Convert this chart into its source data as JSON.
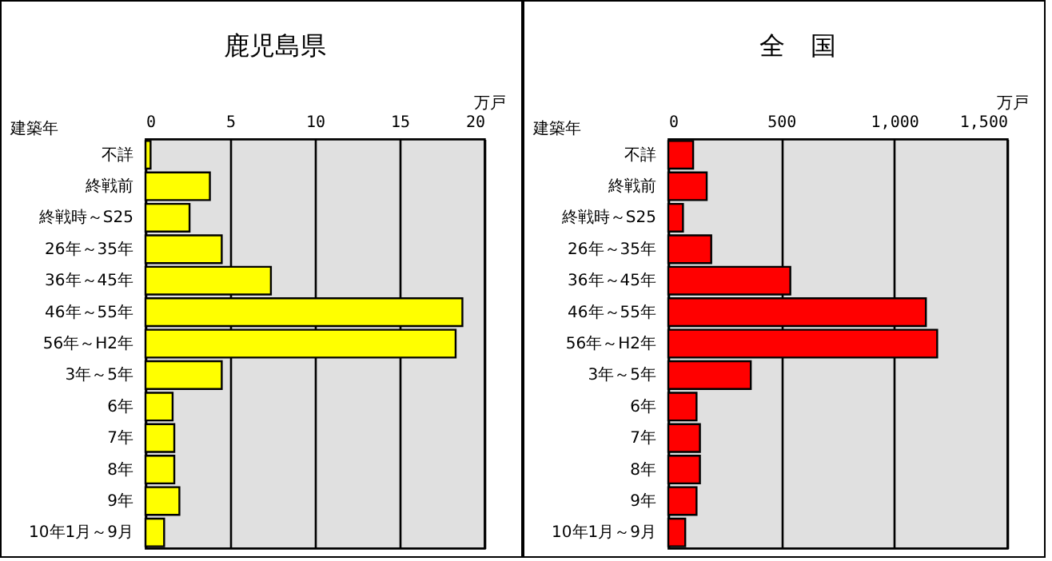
{
  "chart_data": [
    {
      "type": "bar",
      "orientation": "horizontal",
      "title": "鹿児島県",
      "xlabel": "万戸",
      "ylabel": "建築年",
      "categories": [
        "不詳",
        "終戦前",
        "終戦時～S25",
        "26年～35年",
        "36年～45年",
        "46年～55年",
        "56年～H2年",
        "3年～5年",
        "6年",
        "7年",
        "8年",
        "9年",
        "10年1月～9月"
      ],
      "values": [
        0.3,
        3.8,
        2.6,
        4.5,
        7.4,
        18.7,
        18.3,
        4.5,
        1.6,
        1.7,
        1.7,
        2.0,
        1.1
      ],
      "color": "#ffff00",
      "xlim": [
        0,
        20
      ],
      "xticks": [
        0,
        5,
        10,
        15,
        20
      ],
      "grid": "x"
    },
    {
      "type": "bar",
      "orientation": "horizontal",
      "title": "全　国",
      "xlabel": "万戸",
      "ylabel": "建築年",
      "categories": [
        "不詳",
        "終戦前",
        "終戦時～S25",
        "26年～35年",
        "36年～45年",
        "46年～55年",
        "56年～H2年",
        "3年～5年",
        "6年",
        "7年",
        "8年",
        "9年",
        "10年1月～9月"
      ],
      "values": [
        110,
        170,
        65,
        190,
        540,
        1140,
        1190,
        365,
        125,
        140,
        140,
        125,
        75
      ],
      "color": "#ff0000",
      "xlim": [
        0,
        1500
      ],
      "xticks": [
        0,
        500,
        {
          "value": 1000,
          "label": "1,000"
        },
        {
          "value": 1500,
          "label": "1,500"
        }
      ],
      "grid": "x"
    }
  ]
}
